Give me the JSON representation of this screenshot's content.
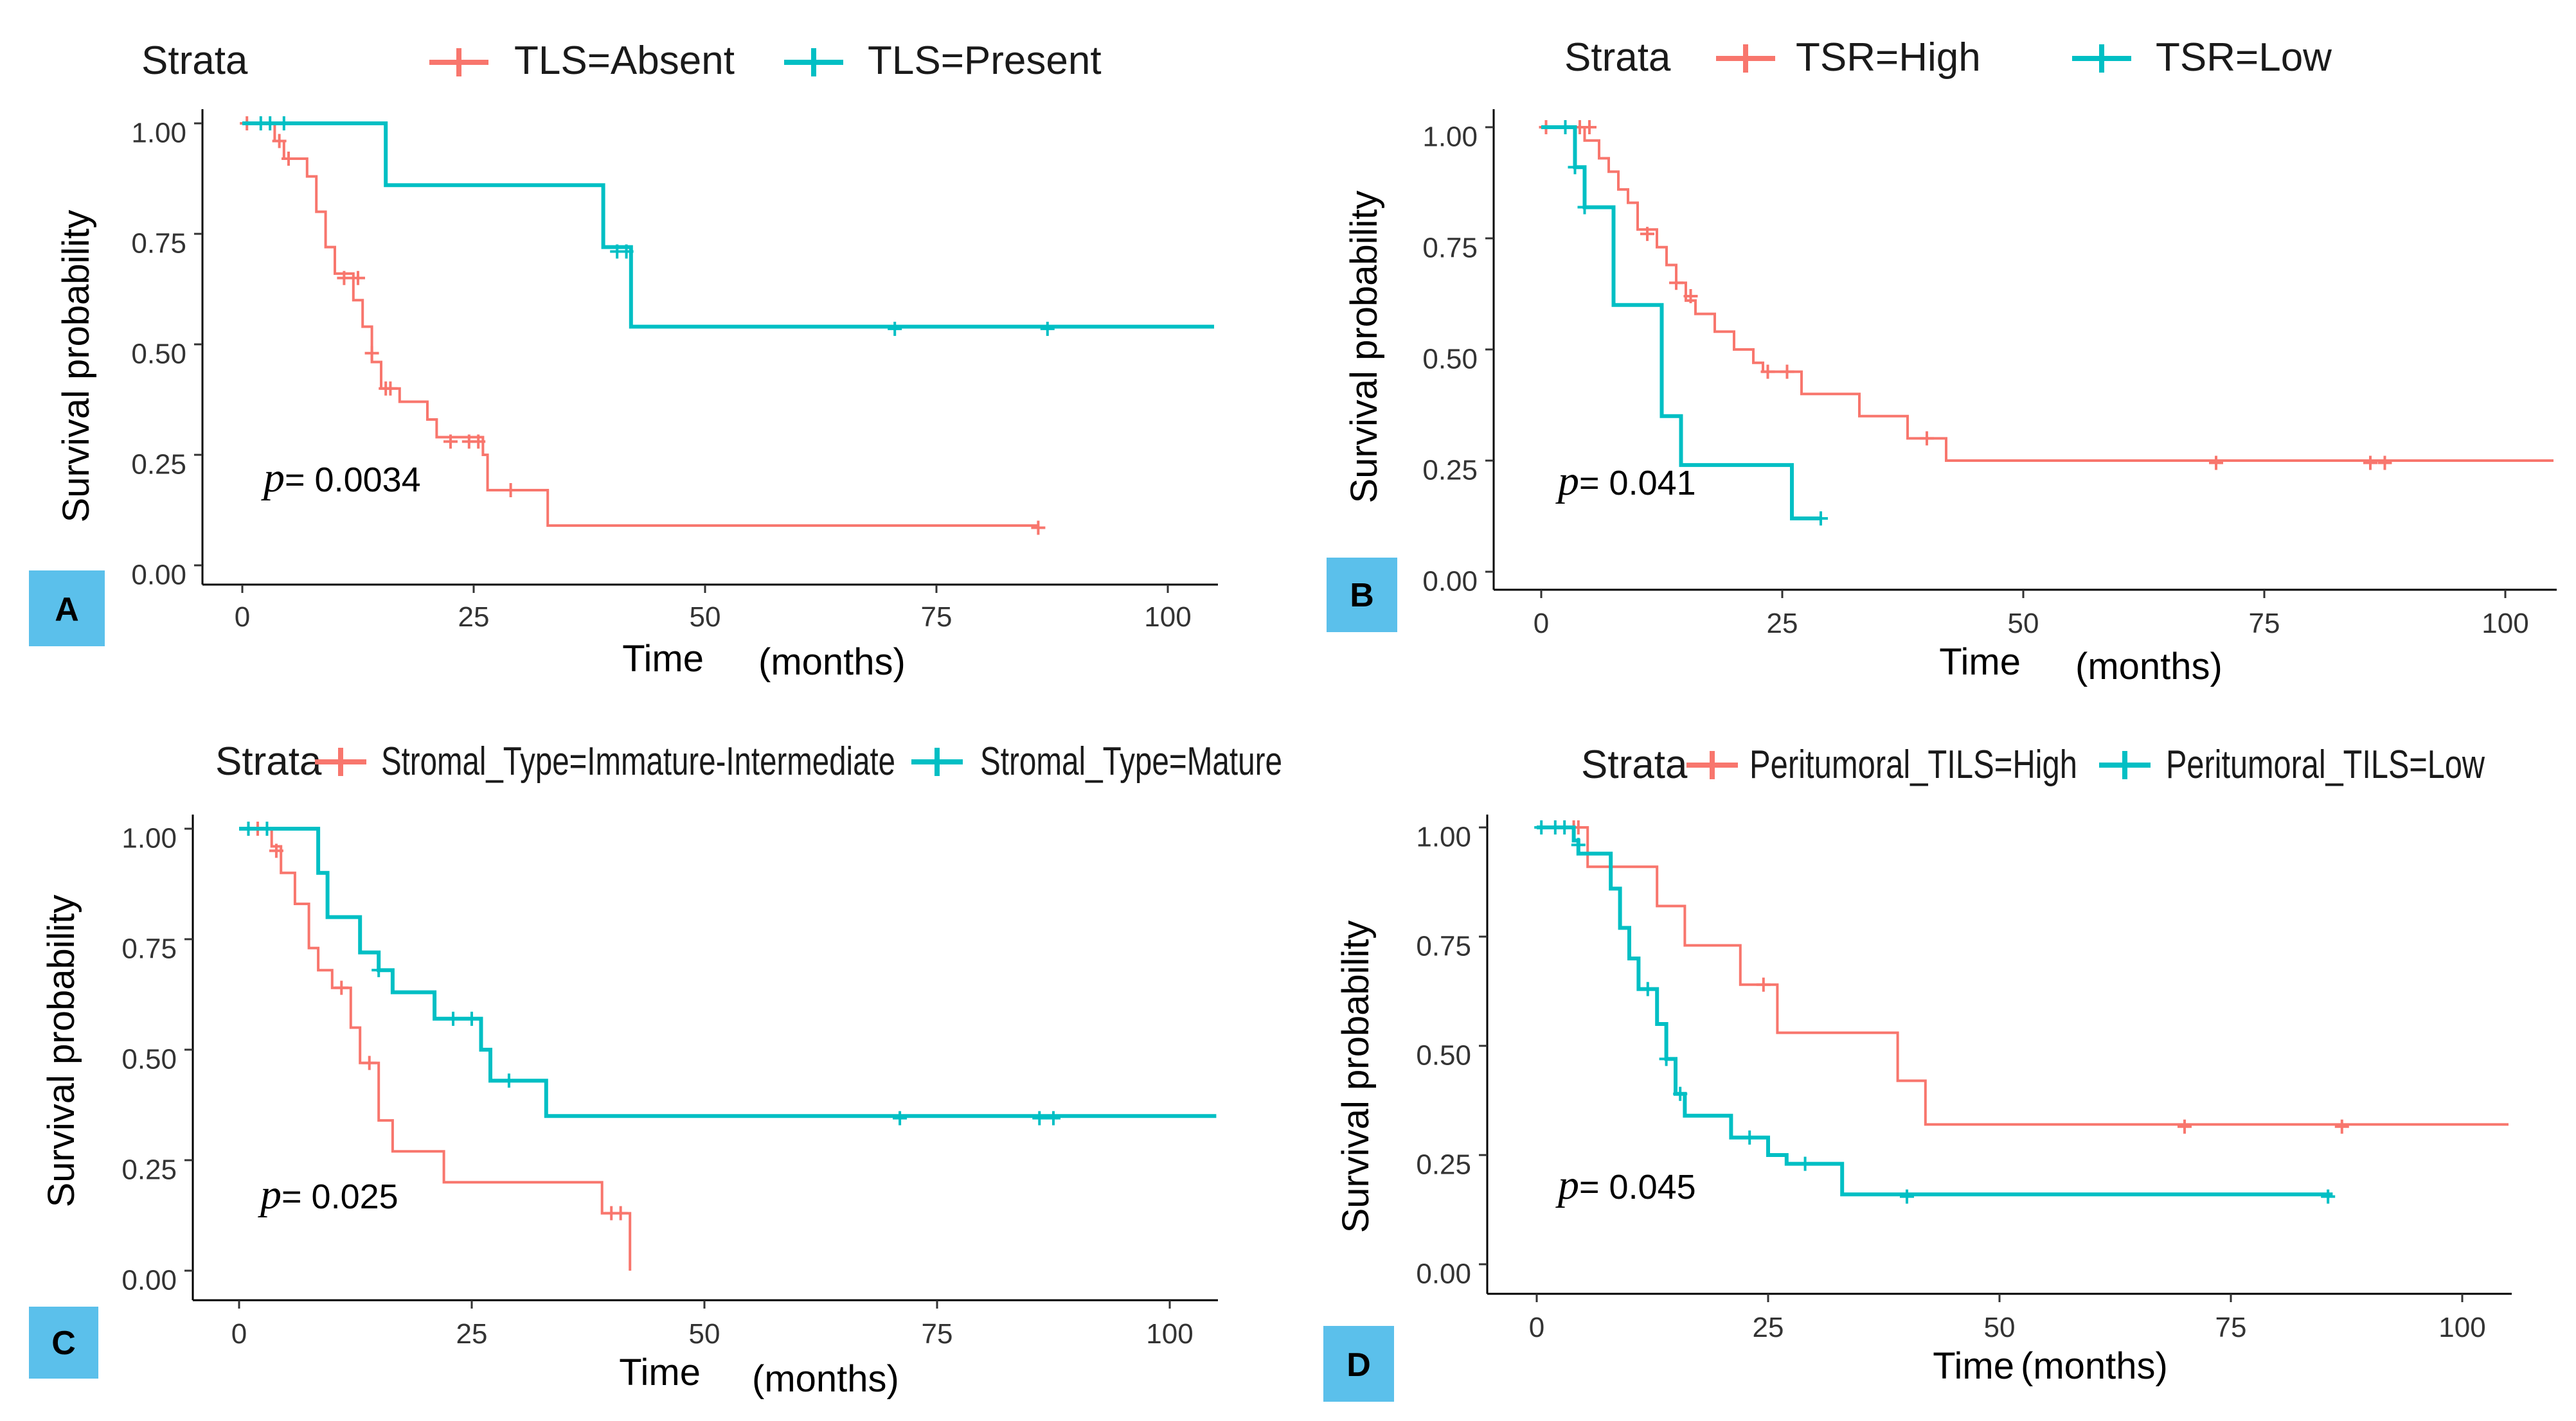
{
  "chart_data": [
    {
      "panel": "A",
      "type": "line",
      "subtype": "kaplan-meier",
      "legend_title": "Strata",
      "legend_position": "top",
      "xlabel_main": "Time",
      "xlabel_unit": "(months)",
      "ylabel": "Survival probability",
      "xlim": [
        -3,
        105
      ],
      "ylim": [
        0,
        1
      ],
      "xticks": [
        0,
        25,
        50,
        75,
        100
      ],
      "xtick_labels": [
        "0",
        "25",
        "50",
        "75",
        "100"
      ],
      "yticks": [
        0,
        0.25,
        0.5,
        0.75,
        1
      ],
      "ytick_labels": [
        "0.00",
        "0.25",
        "0.50",
        "0.75",
        "1.00"
      ],
      "p_symbol": "p",
      "p_value": "= 0.0034",
      "p_at": [
        3,
        0.2
      ],
      "series": [
        {
          "name": "TLS=Absent",
          "color": "#F8766D",
          "steps": [
            [
              0,
              1
            ],
            [
              3.5,
              0.96
            ],
            [
              4.5,
              0.92
            ],
            [
              7,
              0.88
            ],
            [
              8,
              0.8
            ],
            [
              9,
              0.72
            ],
            [
              10,
              0.66
            ],
            [
              12,
              0.6
            ],
            [
              13,
              0.54
            ],
            [
              14,
              0.46
            ],
            [
              15,
              0.4
            ],
            [
              17,
              0.37
            ],
            [
              20,
              0.33
            ],
            [
              21,
              0.29
            ],
            [
              26,
              0.25
            ],
            [
              26.5,
              0.17
            ],
            [
              33,
              0.09
            ],
            [
              86,
              0.09
            ]
          ],
          "censored": [
            [
              0.5,
              1
            ],
            [
              4,
              0.96
            ],
            [
              5,
              0.92
            ],
            [
              11,
              0.65
            ],
            [
              12.5,
              0.65
            ],
            [
              14,
              0.48
            ],
            [
              15.5,
              0.4
            ],
            [
              16,
              0.4
            ],
            [
              22.5,
              0.28
            ],
            [
              24.5,
              0.28
            ],
            [
              25.5,
              0.28
            ],
            [
              29,
              0.17
            ],
            [
              86,
              0.085
            ]
          ]
        },
        {
          "name": "TLS=Present",
          "color": "#00BFC4",
          "steps": [
            [
              0,
              1
            ],
            [
              15.5,
              0.86
            ],
            [
              39,
              0.72
            ],
            [
              42,
              0.54
            ],
            [
              105,
              0.54
            ]
          ],
          "censored": [
            [
              2,
              1
            ],
            [
              3,
              1
            ],
            [
              4.5,
              1
            ],
            [
              40.5,
              0.71
            ],
            [
              41.5,
              0.71
            ],
            [
              70.5,
              0.535
            ],
            [
              87,
              0.535
            ]
          ]
        }
      ]
    },
    {
      "panel": "B",
      "type": "line",
      "subtype": "kaplan-meier",
      "legend_title": "Strata",
      "legend_position": "top",
      "xlabel_main": "Time",
      "xlabel_unit": "(months)",
      "ylabel": "Survival probability",
      "xlim": [
        -5,
        105
      ],
      "ylim": [
        0,
        1
      ],
      "xticks": [
        0,
        25,
        50,
        75,
        100
      ],
      "xtick_labels": [
        "0",
        "25",
        "50",
        "75",
        "100"
      ],
      "yticks": [
        0,
        0.25,
        0.5,
        0.75,
        1
      ],
      "ytick_labels": [
        "0.00",
        "0.25",
        "0.50",
        "0.75",
        "1.00"
      ],
      "p_symbol": "p",
      "p_value": "= 0.041",
      "p_at": [
        1.5,
        0.19
      ],
      "series": [
        {
          "name": "TSR=High",
          "color": "#F8766D",
          "steps": [
            [
              0,
              1
            ],
            [
              4.5,
              0.97
            ],
            [
              6,
              0.93
            ],
            [
              7,
              0.9
            ],
            [
              8,
              0.86
            ],
            [
              9,
              0.83
            ],
            [
              10,
              0.77
            ],
            [
              12,
              0.73
            ],
            [
              13,
              0.69
            ],
            [
              14,
              0.65
            ],
            [
              15,
              0.61
            ],
            [
              16,
              0.58
            ],
            [
              18,
              0.54
            ],
            [
              20,
              0.5
            ],
            [
              22,
              0.47
            ],
            [
              23,
              0.45
            ],
            [
              27,
              0.4
            ],
            [
              33,
              0.35
            ],
            [
              38,
              0.3
            ],
            [
              42,
              0.25
            ],
            [
              105,
              0.25
            ]
          ],
          "censored": [
            [
              0.5,
              1
            ],
            [
              4,
              1
            ],
            [
              5,
              1
            ],
            [
              11,
              0.76
            ],
            [
              14,
              0.65
            ],
            [
              15.5,
              0.62
            ],
            [
              23.5,
              0.45
            ],
            [
              25.5,
              0.45
            ],
            [
              40,
              0.3
            ],
            [
              70,
              0.245
            ],
            [
              86,
              0.245
            ],
            [
              87.5,
              0.245
            ]
          ]
        },
        {
          "name": "TSR=Low",
          "color": "#00BFC4",
          "steps": [
            [
              0,
              1
            ],
            [
              3.5,
              0.91
            ],
            [
              4.5,
              0.82
            ],
            [
              7.5,
              0.6
            ],
            [
              12.5,
              0.35
            ],
            [
              14.5,
              0.24
            ],
            [
              26,
              0.12
            ],
            [
              29,
              0.12
            ]
          ],
          "censored": [
            [
              2.5,
              1
            ],
            [
              3.5,
              0.91
            ],
            [
              4.5,
              0.82
            ],
            [
              29,
              0.12
            ]
          ]
        }
      ]
    },
    {
      "panel": "C",
      "type": "line",
      "subtype": "kaplan-meier",
      "legend_title": "Strata",
      "legend_position": "top",
      "xlabel_main": "Time",
      "xlabel_unit": "(months)",
      "ylabel": "Survival probability",
      "xlim": [
        -5,
        105
      ],
      "ylim": [
        0,
        1
      ],
      "xticks": [
        0,
        25,
        50,
        75,
        100
      ],
      "xtick_labels": [
        "0",
        "25",
        "50",
        "75",
        "100"
      ],
      "yticks": [
        0,
        0.25,
        0.5,
        0.75,
        1
      ],
      "ytick_labels": [
        "0.00",
        "0.25",
        "0.50",
        "0.75",
        "1.00"
      ],
      "p_symbol": "p",
      "p_value": "= 0.025",
      "p_at": [
        2.5,
        0.17
      ],
      "series": [
        {
          "name": "Stromal_Type=Immature-Intermediate",
          "color": "#F8766D",
          "steps": [
            [
              0,
              1
            ],
            [
              3.5,
              0.96
            ],
            [
              4.5,
              0.9
            ],
            [
              6,
              0.83
            ],
            [
              7.5,
              0.73
            ],
            [
              8.5,
              0.68
            ],
            [
              10,
              0.64
            ],
            [
              12,
              0.55
            ],
            [
              13,
              0.47
            ],
            [
              15,
              0.34
            ],
            [
              16.5,
              0.27
            ],
            [
              22,
              0.2
            ],
            [
              39,
              0.13
            ],
            [
              42,
              0
            ]
          ],
          "censored": [
            [
              1,
              1
            ],
            [
              2,
              1
            ],
            [
              4,
              0.95
            ],
            [
              11,
              0.64
            ],
            [
              14,
              0.47
            ],
            [
              40,
              0.13
            ],
            [
              41,
              0.13
            ]
          ]
        },
        {
          "name": "Stromal_Type=Mature",
          "color": "#00BFC4",
          "steps": [
            [
              0,
              1
            ],
            [
              8.5,
              0.9
            ],
            [
              9.5,
              0.8
            ],
            [
              13,
              0.72
            ],
            [
              15,
              0.68
            ],
            [
              16.5,
              0.63
            ],
            [
              21,
              0.57
            ],
            [
              26,
              0.5
            ],
            [
              27,
              0.43
            ],
            [
              33,
              0.35
            ],
            [
              105,
              0.35
            ]
          ],
          "censored": [
            [
              1,
              1
            ],
            [
              3,
              1
            ],
            [
              15,
              0.68
            ],
            [
              23,
              0.57
            ],
            [
              25,
              0.57
            ],
            [
              29,
              0.43
            ],
            [
              71,
              0.345
            ],
            [
              86,
              0.345
            ],
            [
              87.5,
              0.345
            ]
          ]
        }
      ]
    },
    {
      "panel": "D",
      "type": "line",
      "subtype": "kaplan-meier",
      "legend_title": "Strata",
      "legend_position": "top",
      "xlabel_main": "Time",
      "xlabel_unit": "(months)",
      "ylabel": "Survival probability",
      "xlim": [
        -5,
        105
      ],
      "ylim": [
        0,
        1
      ],
      "xticks": [
        0,
        25,
        50,
        75,
        100
      ],
      "xtick_labels": [
        "0",
        "25",
        "50",
        "75",
        "100"
      ],
      "yticks": [
        0,
        0.25,
        0.5,
        0.75,
        1
      ],
      "ytick_labels": [
        "0.00",
        "0.25",
        "0.50",
        "0.75",
        "1.00"
      ],
      "p_symbol": "p",
      "p_value": "= 0.045",
      "p_at": [
        2.5,
        0.18
      ],
      "series": [
        {
          "name": "Peritumoral_TILS=High",
          "color": "#F8766D",
          "steps": [
            [
              0,
              1
            ],
            [
              5.5,
              0.91
            ],
            [
              13,
              0.82
            ],
            [
              16,
              0.73
            ],
            [
              22,
              0.64
            ],
            [
              26,
              0.53
            ],
            [
              39,
              0.42
            ],
            [
              42,
              0.32
            ],
            [
              105,
              0.32
            ]
          ],
          "censored": [
            [
              4,
              1
            ],
            [
              4.5,
              1
            ],
            [
              24.5,
              0.64
            ],
            [
              70,
              0.315
            ],
            [
              87,
              0.315
            ]
          ]
        },
        {
          "name": "Peritumoral_TILS=Low",
          "color": "#00BFC4",
          "steps": [
            [
              0,
              1
            ],
            [
              4,
              0.97
            ],
            [
              4.5,
              0.94
            ],
            [
              8,
              0.86
            ],
            [
              9,
              0.77
            ],
            [
              10,
              0.7
            ],
            [
              11,
              0.63
            ],
            [
              13,
              0.55
            ],
            [
              14,
              0.47
            ],
            [
              15,
              0.39
            ],
            [
              16,
              0.34
            ],
            [
              21,
              0.29
            ],
            [
              25,
              0.25
            ],
            [
              27,
              0.23
            ],
            [
              33,
              0.16
            ],
            [
              86,
              0.16
            ]
          ],
          "censored": [
            [
              0.5,
              1
            ],
            [
              2,
              1
            ],
            [
              3,
              1
            ],
            [
              4.5,
              0.96
            ],
            [
              12,
              0.63
            ],
            [
              14,
              0.47
            ],
            [
              15.5,
              0.39
            ],
            [
              23,
              0.29
            ],
            [
              29,
              0.23
            ],
            [
              40,
              0.155
            ],
            [
              85.5,
              0.155
            ]
          ]
        }
      ]
    }
  ]
}
